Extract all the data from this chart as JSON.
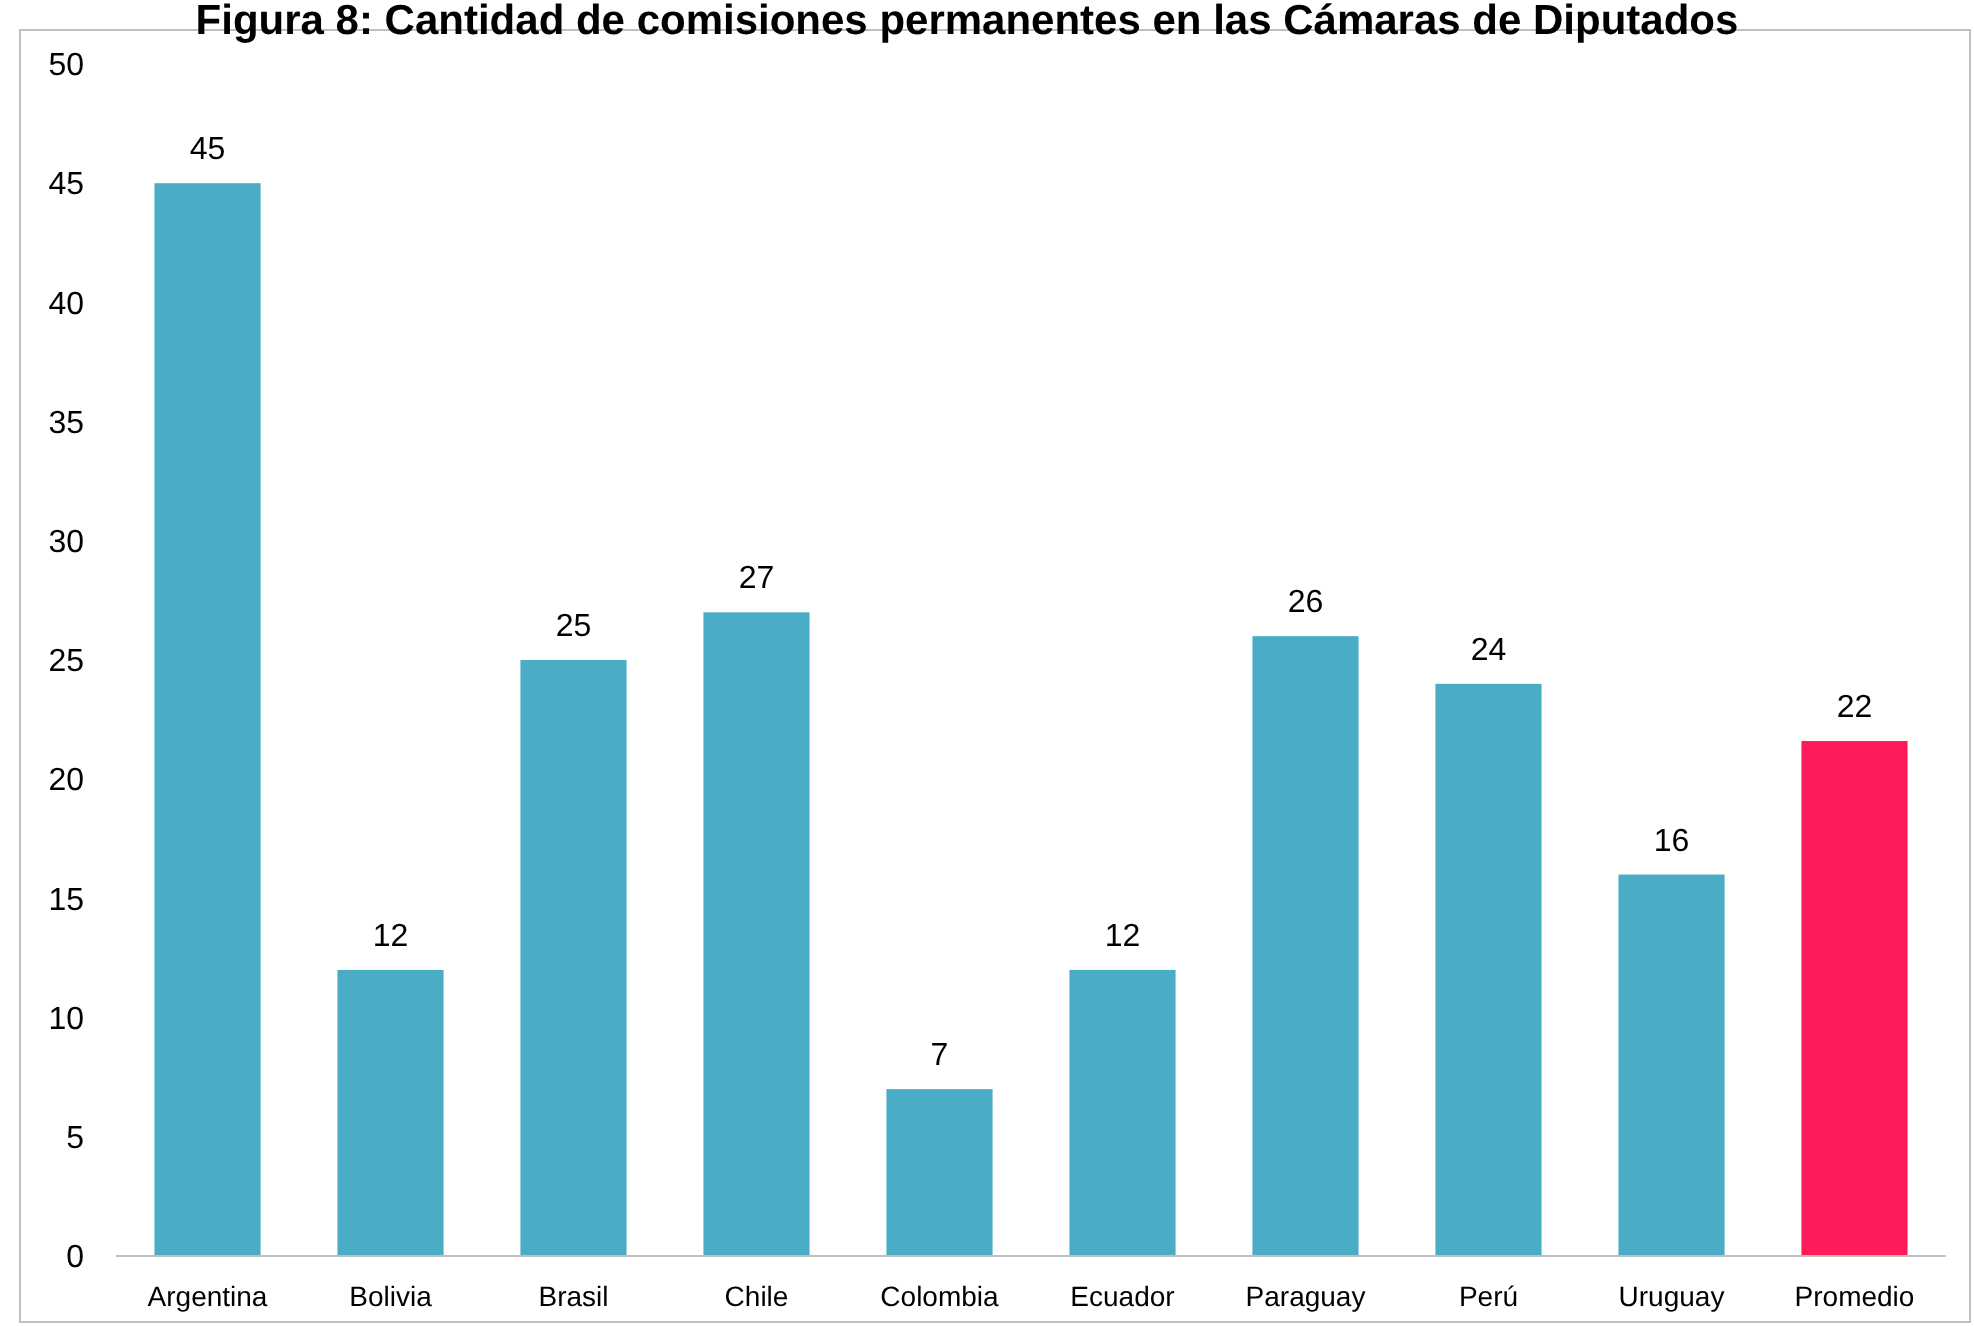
{
  "chart_data": {
    "type": "bar",
    "title": "Figura 8: Cantidad de comisiones permanentes en las Cámaras de Diputados",
    "categories": [
      "Argentina",
      "Bolivia",
      "Brasil",
      "Chile",
      "Colombia",
      "Ecuador",
      "Paraguay",
      "Perú",
      "Uruguay",
      "Promedio"
    ],
    "values": [
      45,
      12,
      25,
      27,
      7,
      12,
      26,
      24,
      16,
      21.6
    ],
    "colors": [
      "#4bacc6",
      "#4bacc6",
      "#4bacc6",
      "#4bacc6",
      "#4bacc6",
      "#4bacc6",
      "#4bacc6",
      "#4bacc6",
      "#4bacc6",
      "#ff1a5a"
    ],
    "value_labels": [
      "45",
      "12",
      "25",
      "27",
      "7",
      "12",
      "26",
      "24",
      "16",
      "22"
    ],
    "ylim": [
      0,
      50
    ],
    "yticks": [
      0,
      5,
      10,
      15,
      20,
      25,
      30,
      35,
      40,
      45,
      50
    ],
    "grid": false
  }
}
